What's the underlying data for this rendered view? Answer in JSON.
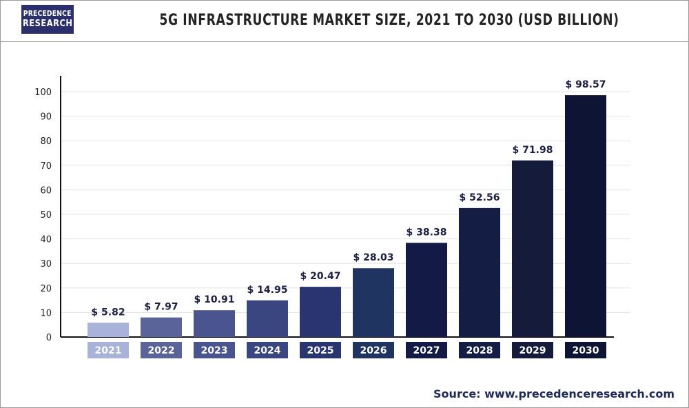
{
  "logo": {
    "line1": "PRECEDENCE",
    "line2": "RESEARCH"
  },
  "source": "Source: www.precedenceresearch.com",
  "chart_data": {
    "type": "bar",
    "title": "5G INFRASTRUCTURE MARKET SIZE, 2021 TO 2030 (USD BILLION)",
    "categories": [
      "2021",
      "2022",
      "2023",
      "2024",
      "2025",
      "2026",
      "2027",
      "2028",
      "2029",
      "2030"
    ],
    "values": [
      5.82,
      7.97,
      10.91,
      14.95,
      20.47,
      28.03,
      38.38,
      52.56,
      71.98,
      98.57
    ],
    "value_labels": [
      "$ 5.82",
      "$ 7.97",
      "$ 10.91",
      "$ 14.95",
      "$ 20.47",
      "$ 28.03",
      "$ 38.38",
      "$ 52.56",
      "$ 71.98",
      "$ 98.57"
    ],
    "yticks": [
      0,
      10,
      20,
      30,
      40,
      50,
      60,
      70,
      80,
      90,
      100
    ],
    "ylim": [
      0,
      100
    ],
    "grid": true,
    "xlabel": "",
    "ylabel": "",
    "colors": [
      "#a9b3d9",
      "#5a6499",
      "#4a5590",
      "#3a4680",
      "#283571",
      "#203461",
      "#121a45",
      "#141d44",
      "#141b3b",
      "#0e1534"
    ]
  }
}
